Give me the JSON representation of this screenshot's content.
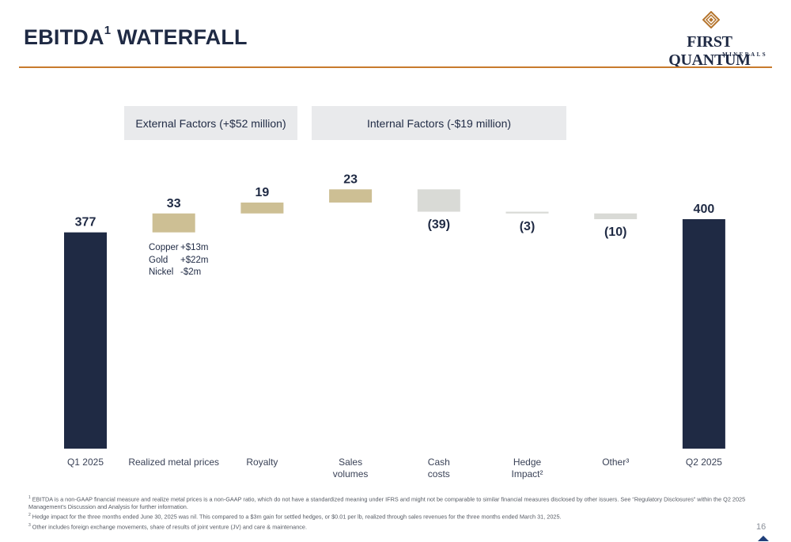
{
  "header": {
    "title_main": "EBITDA",
    "title_sup": "1",
    "title_rest": " WATERFALL"
  },
  "logo": {
    "name": "FIRST QUANTUM",
    "sub": "MINERALS",
    "icon": "diamond-logo-icon"
  },
  "factors": {
    "external": "External Factors (+$52 million)",
    "internal": "Internal Factors (-$19 million)"
  },
  "metal_breakdown": [
    {
      "name": "Copper",
      "value": "+$13m"
    },
    {
      "name": "Gold",
      "value": "+$22m"
    },
    {
      "name": "Nickel",
      "value": "-$2m"
    }
  ],
  "chart_data": {
    "type": "bar",
    "subtype": "waterfall",
    "categories": [
      "Q1 2025",
      "Realized metal prices",
      "Royalty",
      "Sales volumes",
      "Cash costs",
      "Hedge Impact²",
      "Other³",
      "Q2 2025"
    ],
    "category_lines": [
      [
        "Q1 2025"
      ],
      [
        "Realized metal prices"
      ],
      [
        "Royalty"
      ],
      [
        "Sales",
        "volumes"
      ],
      [
        "Cash",
        "costs"
      ],
      [
        "Hedge",
        "Impact²"
      ],
      [
        "Other³"
      ],
      [
        "Q2 2025"
      ]
    ],
    "values": [
      377,
      33,
      19,
      23,
      -39,
      -3,
      -10,
      400
    ],
    "kinds": [
      "total",
      "delta",
      "delta",
      "delta",
      "delta",
      "delta",
      "delta",
      "total"
    ],
    "value_labels": [
      "377",
      "33",
      "19",
      "23",
      "(39)",
      "(3)",
      "(10)",
      "400"
    ],
    "ylim": [
      0,
      420
    ],
    "colors": {
      "total": "#1f2a44",
      "increase": "#cdbf94",
      "decrease": "#d9dad6"
    },
    "grid": false,
    "legend": "none"
  },
  "footnotes": [
    {
      "sup": "1",
      "text": " EBITDA is a non-GAAP financial measure and realize metal prices is a non-GAAP ratio, which do not have a standardized meaning under IFRS and might not be comparable to similar financial measures disclosed by other issuers. See “Regulatory Disclosures” within the Q2 2025 Management’s Discussion and Analysis for further information."
    },
    {
      "sup": "2",
      "text": " Hedge impact for the three months ended June 30, 2025 was nil. This compared to a $3m gain for settled hedges, or $0.01 per lb, realized through sales revenues for the three months ended March 31, 2025."
    },
    {
      "sup": "3",
      "text": " Other includes foreign exchange movements, share of results of joint venture (JV) and care & maintenance."
    }
  ],
  "page": {
    "number": "16",
    "nav_icon": "triangle-up-icon"
  }
}
